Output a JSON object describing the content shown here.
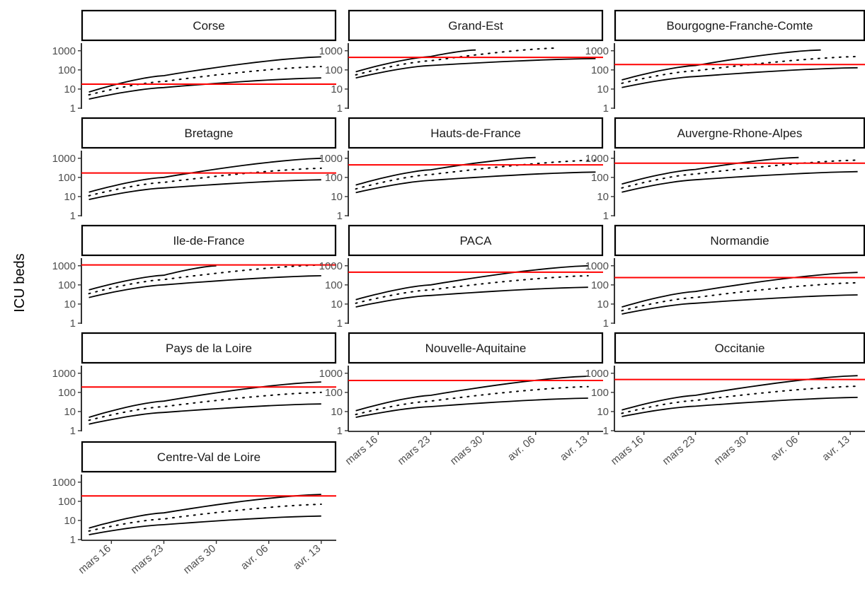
{
  "chart_data": {
    "type": "line",
    "ylabel": "ICU beds",
    "xlabel": "",
    "y_scale": "log10",
    "ylim": [
      1,
      2500
    ],
    "y_ticks": [
      1,
      10,
      100,
      1000
    ],
    "x_tick_labels": [
      "mars 16",
      "mars 23",
      "mars 30",
      "avr. 06",
      "avr. 13"
    ],
    "x_tick_dates": [
      "2020-03-16",
      "2020-03-23",
      "2020-03-30",
      "2020-04-06",
      "2020-04-13"
    ],
    "xlim": [
      "2020-03-12",
      "2020-04-15"
    ],
    "line_styles": {
      "upper": "solid",
      "median": "dotted",
      "lower": "solid",
      "capacity": "solid red"
    },
    "colors": {
      "curves": "#000000",
      "capacity": "#ff0000"
    },
    "panels": [
      {
        "name": "Corse",
        "capacity": 18,
        "upper": [
          {
            "x": "2020-03-13",
            "y": 7
          },
          {
            "x": "2020-03-23",
            "y": 50
          },
          {
            "x": "2020-04-13",
            "y": 480
          }
        ],
        "median": [
          {
            "x": "2020-03-13",
            "y": 5
          },
          {
            "x": "2020-03-23",
            "y": 25
          },
          {
            "x": "2020-04-13",
            "y": 150
          }
        ],
        "lower": [
          {
            "x": "2020-03-13",
            "y": 3
          },
          {
            "x": "2020-03-23",
            "y": 12
          },
          {
            "x": "2020-04-13",
            "y": 38
          }
        ]
      },
      {
        "name": "Grand-Est",
        "capacity": 450,
        "upper": [
          {
            "x": "2020-03-13",
            "y": 80
          },
          {
            "x": "2020-03-23",
            "y": 500
          },
          {
            "x": "2020-03-29",
            "y": 1100
          }
        ],
        "median": [
          {
            "x": "2020-03-13",
            "y": 55
          },
          {
            "x": "2020-03-23",
            "y": 300
          },
          {
            "x": "2020-04-09",
            "y": 1400
          }
        ],
        "lower": [
          {
            "x": "2020-03-13",
            "y": 38
          },
          {
            "x": "2020-03-23",
            "y": 170
          },
          {
            "x": "2020-04-14",
            "y": 390
          }
        ]
      },
      {
        "name": "Bourgogne-Franche-Comte",
        "capacity": 190,
        "upper": [
          {
            "x": "2020-03-13",
            "y": 30
          },
          {
            "x": "2020-03-23",
            "y": 170
          },
          {
            "x": "2020-04-09",
            "y": 1100
          }
        ],
        "median": [
          {
            "x": "2020-03-13",
            "y": 20
          },
          {
            "x": "2020-03-23",
            "y": 90
          },
          {
            "x": "2020-04-14",
            "y": 500
          }
        ],
        "lower": [
          {
            "x": "2020-03-13",
            "y": 12
          },
          {
            "x": "2020-03-23",
            "y": 45
          },
          {
            "x": "2020-04-14",
            "y": 130
          }
        ]
      },
      {
        "name": "Bretagne",
        "capacity": 170,
        "upper": [
          {
            "x": "2020-03-13",
            "y": 17
          },
          {
            "x": "2020-03-23",
            "y": 100
          },
          {
            "x": "2020-04-13",
            "y": 1000
          }
        ],
        "median": [
          {
            "x": "2020-03-13",
            "y": 11
          },
          {
            "x": "2020-03-23",
            "y": 55
          },
          {
            "x": "2020-04-13",
            "y": 300
          }
        ],
        "lower": [
          {
            "x": "2020-03-13",
            "y": 7
          },
          {
            "x": "2020-03-23",
            "y": 28
          },
          {
            "x": "2020-04-13",
            "y": 75
          }
        ]
      },
      {
        "name": "Hauts-de-France",
        "capacity": 450,
        "upper": [
          {
            "x": "2020-03-13",
            "y": 40
          },
          {
            "x": "2020-03-23",
            "y": 250
          },
          {
            "x": "2020-04-06",
            "y": 1100
          }
        ],
        "median": [
          {
            "x": "2020-03-13",
            "y": 25
          },
          {
            "x": "2020-03-23",
            "y": 140
          },
          {
            "x": "2020-04-14",
            "y": 800
          }
        ],
        "lower": [
          {
            "x": "2020-03-13",
            "y": 16
          },
          {
            "x": "2020-03-23",
            "y": 70
          },
          {
            "x": "2020-04-14",
            "y": 190
          }
        ]
      },
      {
        "name": "Auvergne-Rhone-Alpes",
        "capacity": 550,
        "upper": [
          {
            "x": "2020-03-13",
            "y": 45
          },
          {
            "x": "2020-03-23",
            "y": 260
          },
          {
            "x": "2020-04-06",
            "y": 1100
          }
        ],
        "median": [
          {
            "x": "2020-03-13",
            "y": 28
          },
          {
            "x": "2020-03-23",
            "y": 150
          },
          {
            "x": "2020-04-14",
            "y": 800
          }
        ],
        "lower": [
          {
            "x": "2020-03-13",
            "y": 17
          },
          {
            "x": "2020-03-23",
            "y": 75
          },
          {
            "x": "2020-04-14",
            "y": 200
          }
        ]
      },
      {
        "name": "Ile-de-France",
        "capacity": 1100,
        "upper": [
          {
            "x": "2020-03-13",
            "y": 55
          },
          {
            "x": "2020-03-23",
            "y": 320
          },
          {
            "x": "2020-03-30",
            "y": 1000
          }
        ],
        "median": [
          {
            "x": "2020-03-13",
            "y": 35
          },
          {
            "x": "2020-03-23",
            "y": 190
          },
          {
            "x": "2020-04-13",
            "y": 1100
          }
        ],
        "lower": [
          {
            "x": "2020-03-13",
            "y": 22
          },
          {
            "x": "2020-03-23",
            "y": 100
          },
          {
            "x": "2020-04-13",
            "y": 300
          }
        ]
      },
      {
        "name": "PACA",
        "capacity": 460,
        "upper": [
          {
            "x": "2020-03-13",
            "y": 17
          },
          {
            "x": "2020-03-23",
            "y": 100
          },
          {
            "x": "2020-04-13",
            "y": 1000
          }
        ],
        "median": [
          {
            "x": "2020-03-13",
            "y": 11
          },
          {
            "x": "2020-03-23",
            "y": 55
          },
          {
            "x": "2020-04-13",
            "y": 300
          }
        ],
        "lower": [
          {
            "x": "2020-03-13",
            "y": 7
          },
          {
            "x": "2020-03-23",
            "y": 28
          },
          {
            "x": "2020-04-13",
            "y": 75
          }
        ]
      },
      {
        "name": "Normandie",
        "capacity": 240,
        "upper": [
          {
            "x": "2020-03-13",
            "y": 7
          },
          {
            "x": "2020-03-23",
            "y": 45
          },
          {
            "x": "2020-04-14",
            "y": 450
          }
        ],
        "median": [
          {
            "x": "2020-03-13",
            "y": 4.5
          },
          {
            "x": "2020-03-23",
            "y": 22
          },
          {
            "x": "2020-04-14",
            "y": 130
          }
        ],
        "lower": [
          {
            "x": "2020-03-13",
            "y": 3
          },
          {
            "x": "2020-03-23",
            "y": 11
          },
          {
            "x": "2020-04-14",
            "y": 30
          }
        ]
      },
      {
        "name": "Pays de la Loire",
        "capacity": 190,
        "upper": [
          {
            "x": "2020-03-13",
            "y": 5
          },
          {
            "x": "2020-03-23",
            "y": 35
          },
          {
            "x": "2020-04-13",
            "y": 350
          }
        ],
        "median": [
          {
            "x": "2020-03-13",
            "y": 3.5
          },
          {
            "x": "2020-03-23",
            "y": 18
          },
          {
            "x": "2020-04-13",
            "y": 100
          }
        ],
        "lower": [
          {
            "x": "2020-03-13",
            "y": 2.2
          },
          {
            "x": "2020-03-23",
            "y": 9
          },
          {
            "x": "2020-04-13",
            "y": 25
          }
        ]
      },
      {
        "name": "Nouvelle-Aquitaine",
        "capacity": 420,
        "upper": [
          {
            "x": "2020-03-13",
            "y": 11
          },
          {
            "x": "2020-03-23",
            "y": 70
          },
          {
            "x": "2020-04-13",
            "y": 700
          }
        ],
        "median": [
          {
            "x": "2020-03-13",
            "y": 7
          },
          {
            "x": "2020-03-23",
            "y": 35
          },
          {
            "x": "2020-04-13",
            "y": 200
          }
        ],
        "lower": [
          {
            "x": "2020-03-13",
            "y": 5
          },
          {
            "x": "2020-03-23",
            "y": 18
          },
          {
            "x": "2020-04-13",
            "y": 50
          }
        ]
      },
      {
        "name": "Occitanie",
        "capacity": 470,
        "upper": [
          {
            "x": "2020-03-13",
            "y": 12
          },
          {
            "x": "2020-03-23",
            "y": 70
          },
          {
            "x": "2020-04-14",
            "y": 750
          }
        ],
        "median": [
          {
            "x": "2020-03-13",
            "y": 8
          },
          {
            "x": "2020-03-23",
            "y": 38
          },
          {
            "x": "2020-04-14",
            "y": 210
          }
        ],
        "lower": [
          {
            "x": "2020-03-13",
            "y": 5.5
          },
          {
            "x": "2020-03-23",
            "y": 19
          },
          {
            "x": "2020-04-14",
            "y": 55
          }
        ]
      },
      {
        "name": "Centre-Val de Loire",
        "capacity": 190,
        "upper": [
          {
            "x": "2020-03-13",
            "y": 4
          },
          {
            "x": "2020-03-23",
            "y": 25
          },
          {
            "x": "2020-04-13",
            "y": 230
          }
        ],
        "median": [
          {
            "x": "2020-03-13",
            "y": 2.8
          },
          {
            "x": "2020-03-23",
            "y": 12
          },
          {
            "x": "2020-04-13",
            "y": 70
          }
        ],
        "lower": [
          {
            "x": "2020-03-13",
            "y": 1.8
          },
          {
            "x": "2020-03-23",
            "y": 6
          },
          {
            "x": "2020-04-13",
            "y": 17
          }
        ]
      }
    ]
  }
}
